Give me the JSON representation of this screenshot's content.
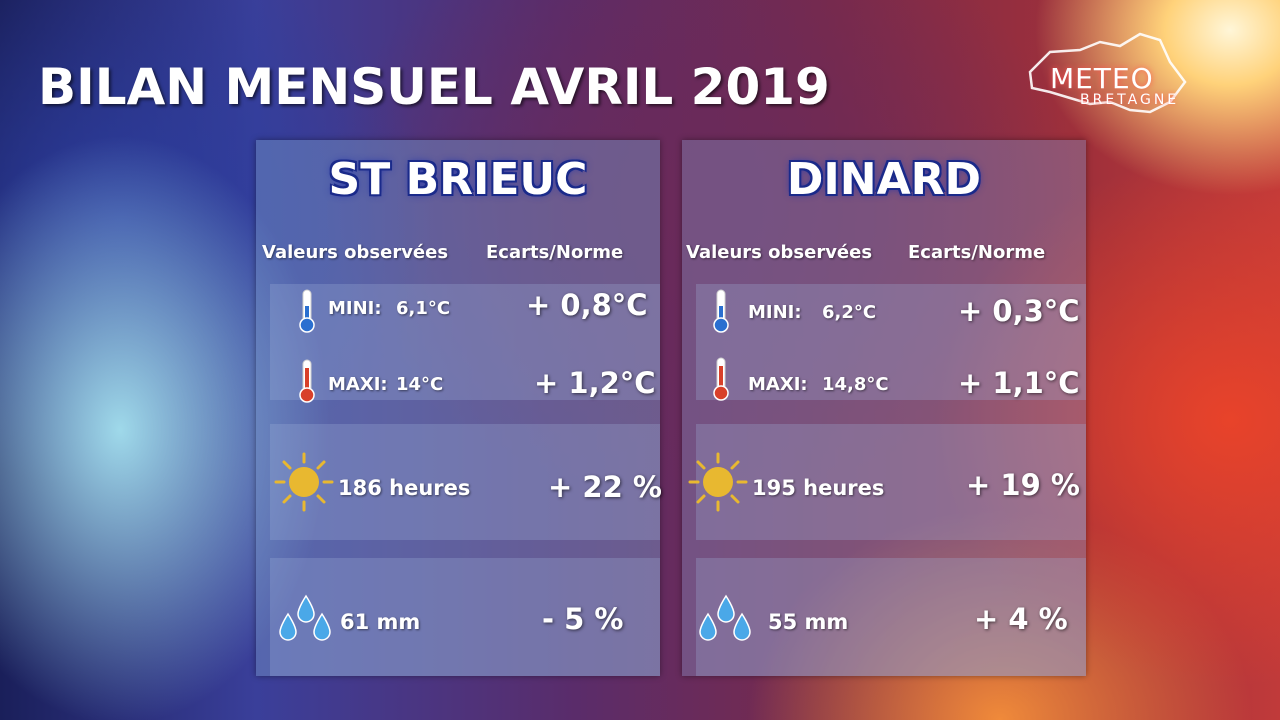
{
  "title": "BILAN MENSUEL AVRIL 2019",
  "logo": {
    "line1": "METEO",
    "line2": "BRETAGNE"
  },
  "header": {
    "observed": "Valeurs observées",
    "deviation": "Ecarts/Norme"
  },
  "stations": [
    {
      "name": "ST BRIEUC",
      "min": {
        "label": "MINI:",
        "value": "6,1°C",
        "deviation": "+ 0,8°C"
      },
      "max": {
        "label": "MAXI:",
        "value": "14°C",
        "deviation": "+ 1,2°C"
      },
      "sunshine": {
        "value": "186 heures",
        "deviation": "+ 22 %"
      },
      "rain": {
        "value": "61 mm",
        "deviation": "- 5 %"
      }
    },
    {
      "name": "DINARD",
      "min": {
        "label": "MINI:",
        "value": "6,2°C",
        "deviation": "+ 0,3°C"
      },
      "max": {
        "label": "MAXI:",
        "value": "14,8°C",
        "deviation": "+ 1,1°C"
      },
      "sunshine": {
        "value": "195 heures",
        "deviation": "+ 19 %"
      },
      "rain": {
        "value": "55 mm",
        "deviation": "+ 4 %"
      }
    }
  ],
  "icons": {
    "cold": "thermometer-cold-icon",
    "hot": "thermometer-hot-icon",
    "sun": "sun-icon",
    "rain": "raindrops-icon"
  },
  "colors": {
    "sun": "#e8b830",
    "cold": "#2a6fd0",
    "hot": "#d8402a",
    "drop": "#4aa8e8"
  }
}
